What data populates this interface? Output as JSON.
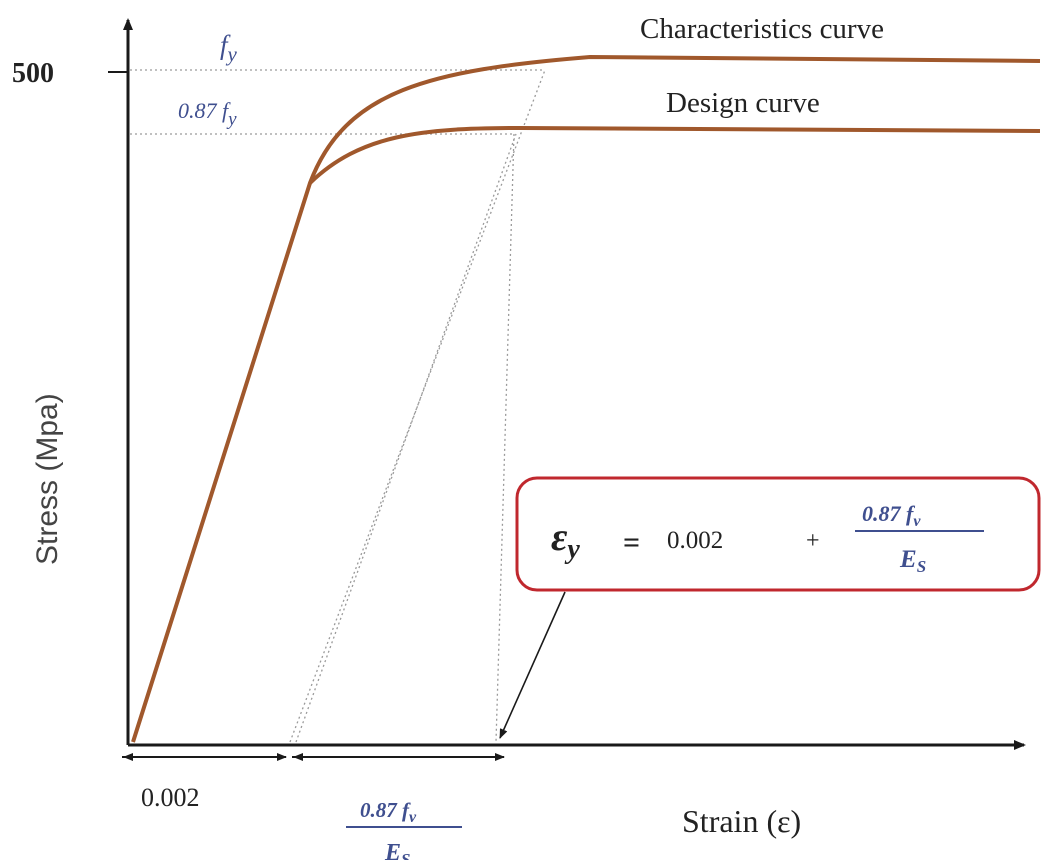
{
  "chart_data": {
    "type": "line",
    "title": "",
    "xlabel": "Strain (ε)",
    "ylabel": "Stress (Mpa)",
    "y_tick_labels": [
      "500"
    ],
    "x_tick_labels": [
      "0.002"
    ],
    "series": [
      {
        "name": "Characteristics curve"
      },
      {
        "name": "Design curve"
      }
    ],
    "annotations": {
      "fy_label": "f_y",
      "fy_087_label": "0.87 f_y",
      "interval_label_numerator": "0.87 f_v",
      "interval_label_denominator": "E_S",
      "formula": {
        "lhs": "ε_y",
        "equals": "=",
        "term1": "0.002",
        "plus": "+",
        "numerator": "0.87 f_v",
        "denominator": "E_S"
      }
    },
    "colors": {
      "curve": "#a0582c",
      "axis": "#1a1a1a",
      "guide": "#9a9a9a",
      "label_blue": "#3f4f8f",
      "box_border": "#c0282e"
    },
    "grid": false,
    "legend": "none"
  }
}
